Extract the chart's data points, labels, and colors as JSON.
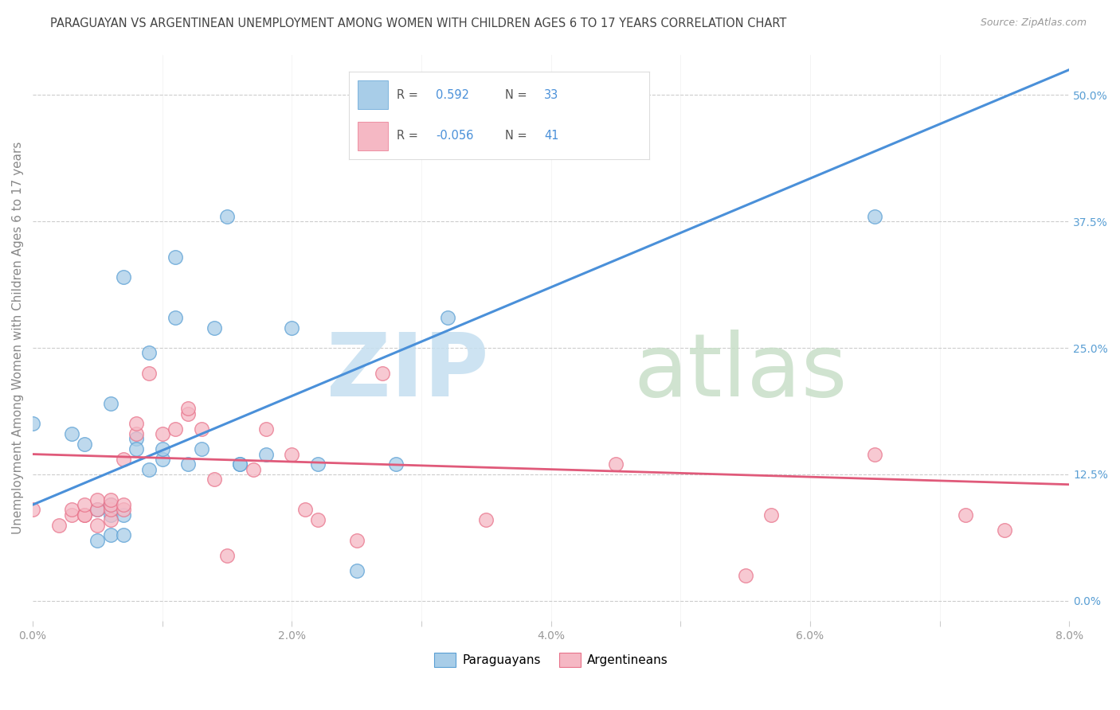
{
  "title": "PARAGUAYAN VS ARGENTINEAN UNEMPLOYMENT AMONG WOMEN WITH CHILDREN AGES 6 TO 17 YEARS CORRELATION CHART",
  "source": "Source: ZipAtlas.com",
  "ylabel": "Unemployment Among Women with Children Ages 6 to 17 years",
  "xlim": [
    0.0,
    0.08
  ],
  "ylim": [
    -0.02,
    0.54
  ],
  "xticks": [
    0.0,
    0.01,
    0.02,
    0.03,
    0.04,
    0.05,
    0.06,
    0.07,
    0.08
  ],
  "xticklabels": [
    "0.0%",
    "",
    "2.0%",
    "",
    "4.0%",
    "",
    "6.0%",
    "",
    "8.0%"
  ],
  "yticks_right": [
    0.0,
    0.125,
    0.25,
    0.375,
    0.5
  ],
  "ytick_right_labels": [
    "0.0%",
    "12.5%",
    "25.0%",
    "37.5%",
    "50.0%"
  ],
  "blue_color": "#a8cde8",
  "pink_color": "#f5b8c4",
  "blue_edge_color": "#5a9fd4",
  "pink_edge_color": "#e8728a",
  "blue_line_color": "#4a90d9",
  "pink_line_color": "#e05a7a",
  "background_color": "#ffffff",
  "paraguayan_x": [
    0.0,
    0.003,
    0.004,
    0.005,
    0.005,
    0.006,
    0.006,
    0.006,
    0.006,
    0.007,
    0.007,
    0.007,
    0.008,
    0.008,
    0.009,
    0.009,
    0.01,
    0.01,
    0.011,
    0.011,
    0.012,
    0.013,
    0.014,
    0.015,
    0.016,
    0.016,
    0.018,
    0.02,
    0.022,
    0.025,
    0.028,
    0.032,
    0.065
  ],
  "paraguayan_y": [
    0.175,
    0.165,
    0.155,
    0.06,
    0.09,
    0.065,
    0.085,
    0.095,
    0.195,
    0.065,
    0.085,
    0.32,
    0.16,
    0.15,
    0.245,
    0.13,
    0.14,
    0.15,
    0.28,
    0.34,
    0.135,
    0.15,
    0.27,
    0.38,
    0.135,
    0.135,
    0.145,
    0.27,
    0.135,
    0.03,
    0.135,
    0.28,
    0.38
  ],
  "argentinean_x": [
    0.0,
    0.002,
    0.003,
    0.003,
    0.004,
    0.004,
    0.004,
    0.005,
    0.005,
    0.005,
    0.006,
    0.006,
    0.006,
    0.006,
    0.007,
    0.007,
    0.007,
    0.008,
    0.008,
    0.009,
    0.01,
    0.011,
    0.012,
    0.012,
    0.013,
    0.014,
    0.015,
    0.017,
    0.018,
    0.02,
    0.021,
    0.022,
    0.025,
    0.027,
    0.035,
    0.045,
    0.055,
    0.057,
    0.065,
    0.072,
    0.075
  ],
  "argentinean_y": [
    0.09,
    0.075,
    0.085,
    0.09,
    0.085,
    0.085,
    0.095,
    0.075,
    0.09,
    0.1,
    0.08,
    0.09,
    0.095,
    0.1,
    0.09,
    0.095,
    0.14,
    0.165,
    0.175,
    0.225,
    0.165,
    0.17,
    0.185,
    0.19,
    0.17,
    0.12,
    0.045,
    0.13,
    0.17,
    0.145,
    0.09,
    0.08,
    0.06,
    0.225,
    0.08,
    0.135,
    0.025,
    0.085,
    0.145,
    0.085,
    0.07
  ],
  "blue_trend_x": [
    0.0,
    0.08
  ],
  "blue_trend_y": [
    0.095,
    0.525
  ],
  "pink_trend_x": [
    0.0,
    0.08
  ],
  "pink_trend_y": [
    0.145,
    0.115
  ],
  "watermark_zip_color": "#c5dff0",
  "watermark_atlas_color": "#c8dfc8",
  "grid_color": "#cccccc",
  "tick_label_color": "#999999",
  "right_tick_color": "#5a9fd4",
  "ylabel_color": "#888888",
  "title_color": "#444444",
  "source_color": "#999999"
}
